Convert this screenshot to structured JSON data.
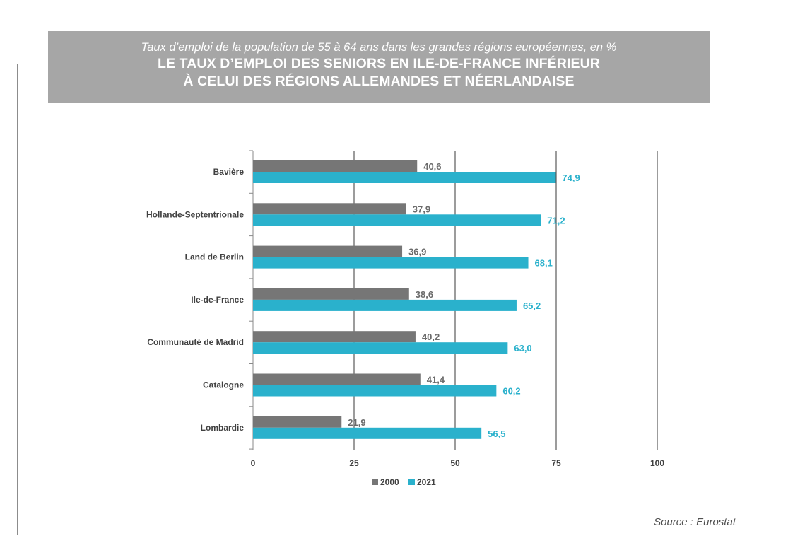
{
  "header": {
    "subtitle": "Taux d’emploi de la population de 55 à 64 ans dans les grandes régions européennes, en %",
    "title_line1": "LE TAUX D’EMPLOI DES SENIORS EN ILE-DE-FRANCE INFÉRIEUR",
    "title_line2": "À CELUI DES RÉGIONS ALLEMANDES ET NÉERLANDAISE"
  },
  "source": "Source : Eurostat",
  "colors": {
    "series_2000": "#767676",
    "series_2021": "#2ab1cc",
    "header_bg": "#a6a6a6"
  },
  "chart_data": {
    "type": "bar",
    "orientation": "horizontal",
    "categories": [
      "Bavière",
      "Hollande-Septentrionale",
      "Land de Berlin",
      "Ile-de-France",
      "Communauté de Madrid",
      "Catalogne",
      "Lombardie"
    ],
    "series": [
      {
        "name": "2000",
        "values": [
          40.6,
          37.9,
          36.9,
          38.6,
          40.2,
          41.4,
          21.9
        ],
        "labels": [
          "40,6",
          "37,9",
          "36,9",
          "38,6",
          "40,2",
          "41,4",
          "21,9"
        ]
      },
      {
        "name": "2021",
        "values": [
          74.9,
          71.2,
          68.1,
          65.2,
          63.0,
          60.2,
          56.5
        ],
        "labels": [
          "74,9",
          "71,2",
          "68,1",
          "65,2",
          "63,0",
          "60,2",
          "56,5"
        ]
      }
    ],
    "xlim": [
      0,
      100
    ],
    "xticks": [
      0,
      25,
      50,
      75,
      100
    ],
    "grid": true,
    "legend": "bottom"
  }
}
